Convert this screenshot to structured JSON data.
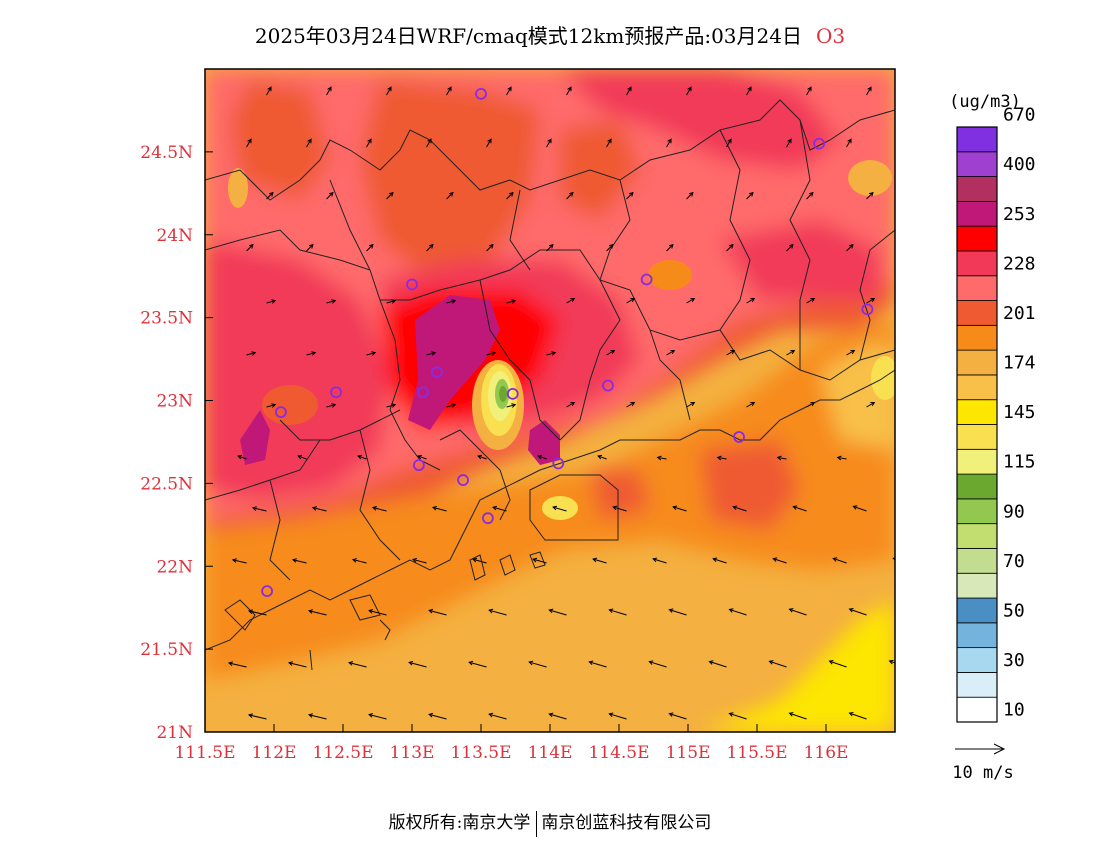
{
  "title": {
    "text": "2025年03月24日WRF/cmaq模式12km预报产品:03月24日",
    "species": "O3"
  },
  "map": {
    "lon_range": [
      111.5,
      116.5
    ],
    "lat_range": [
      21.0,
      25.0
    ],
    "lat_ticks": [
      {
        "value": 21.0,
        "label": "21N"
      },
      {
        "value": 21.5,
        "label": "21.5N"
      },
      {
        "value": 22.0,
        "label": "22N"
      },
      {
        "value": 22.5,
        "label": "22.5N"
      },
      {
        "value": 23.0,
        "label": "23N"
      },
      {
        "value": 23.5,
        "label": "23.5N"
      },
      {
        "value": 24.0,
        "label": "24N"
      },
      {
        "value": 24.5,
        "label": "24.5N"
      }
    ],
    "lon_ticks": [
      {
        "value": 111.5,
        "label": "111.5E"
      },
      {
        "value": 112.0,
        "label": "112E"
      },
      {
        "value": 112.5,
        "label": "112.5E"
      },
      {
        "value": 113.0,
        "label": "113E"
      },
      {
        "value": 113.5,
        "label": "113.5E"
      },
      {
        "value": 114.0,
        "label": "114E"
      },
      {
        "value": 114.5,
        "label": "114.5E"
      },
      {
        "value": 115.0,
        "label": "115E"
      },
      {
        "value": 115.5,
        "label": "115.5E"
      },
      {
        "value": 116.0,
        "label": "116E"
      }
    ],
    "stations": [
      {
        "lon": 113.5,
        "lat": 24.85
      },
      {
        "lon": 115.95,
        "lat": 24.55
      },
      {
        "lon": 113.0,
        "lat": 23.7
      },
      {
        "lon": 114.7,
        "lat": 23.73
      },
      {
        "lon": 116.3,
        "lat": 23.55
      },
      {
        "lon": 112.45,
        "lat": 23.05
      },
      {
        "lon": 112.05,
        "lat": 22.93
      },
      {
        "lon": 113.08,
        "lat": 23.05
      },
      {
        "lon": 113.18,
        "lat": 23.17
      },
      {
        "lon": 113.73,
        "lat": 23.04
      },
      {
        "lon": 114.42,
        "lat": 23.09
      },
      {
        "lon": 115.37,
        "lat": 22.78
      },
      {
        "lon": 113.05,
        "lat": 22.61
      },
      {
        "lon": 113.37,
        "lat": 22.52
      },
      {
        "lon": 114.06,
        "lat": 22.62
      },
      {
        "lon": 113.55,
        "lat": 22.29
      },
      {
        "lon": 111.95,
        "lat": 21.85
      }
    ]
  },
  "legend": {
    "unit": "(ug/m3)",
    "colors": [
      "#ffffff",
      "#d9eef7",
      "#a7d8f0",
      "#73b3dc",
      "#4a8fc4",
      "#d9e8b8",
      "#c2dd90",
      "#c2dd70",
      "#92c850",
      "#6aa830",
      "#f0f07a",
      "#f8e050",
      "#fde600",
      "#f8c048",
      "#f4b040",
      "#f78b1a",
      "#ef5a30",
      "#ff6a6a",
      "#f23a58",
      "#ff0000",
      "#c01878",
      "#b23060",
      "#a040d0",
      "#8030e0"
    ],
    "labels": [
      "10",
      "30",
      "50",
      "70",
      "90",
      "115",
      "145",
      "174",
      "201",
      "228",
      "253",
      "400",
      "670"
    ],
    "wind_label": "10 m/s"
  },
  "footer": {
    "left": "版权所有:南京大学",
    "right": "南京创蓝科技有限公司"
  }
}
